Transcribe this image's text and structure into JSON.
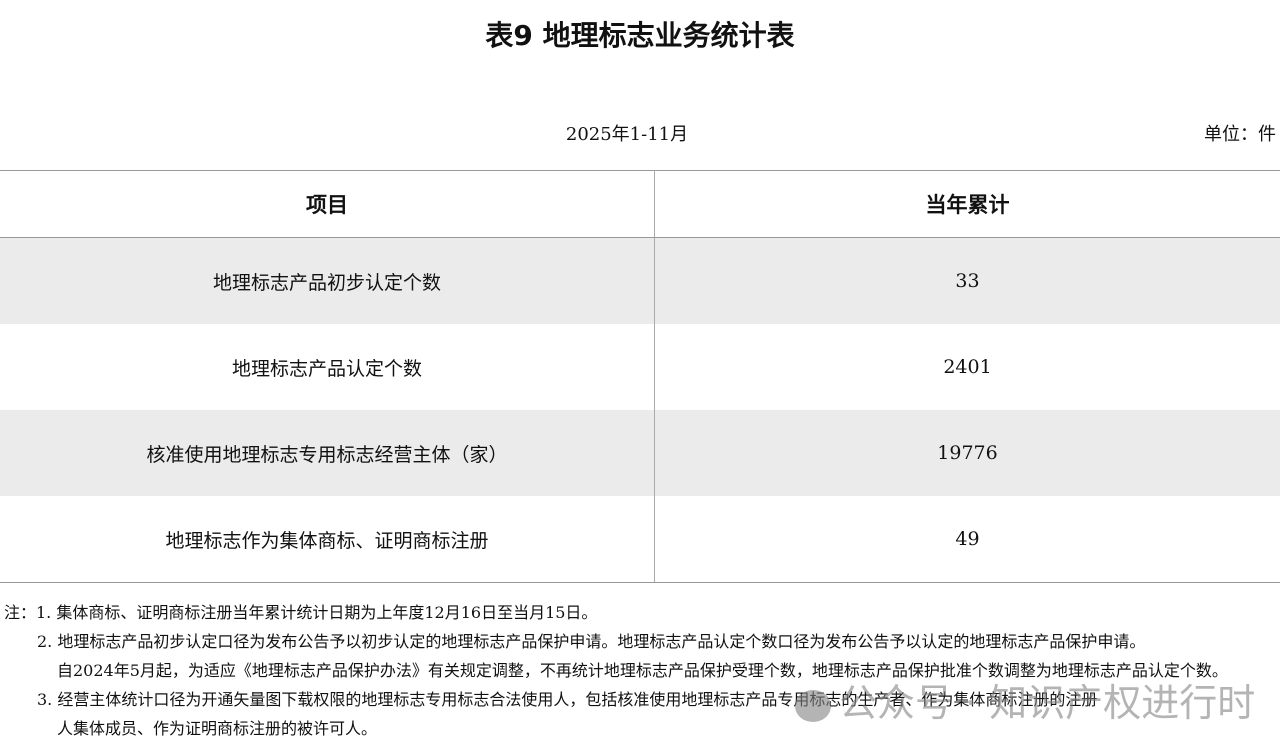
{
  "title": "表9  地理标志业务统计表",
  "period": "2025年1-11月",
  "unit": "单位：件",
  "table": {
    "headers": [
      "项目",
      "当年累计"
    ],
    "rows": [
      {
        "item": "地理标志产品初步认定个数",
        "value": "33"
      },
      {
        "item": "地理标志产品认定个数",
        "value": "2401"
      },
      {
        "item": "核准使用地理标志专用标志经营主体（家）",
        "value": "19776"
      },
      {
        "item": "地理标志作为集体商标、证明商标注册",
        "value": "49"
      }
    ]
  },
  "notes": [
    "注：1. 集体商标、证明商标注册当年累计统计日期为上年度12月16日至当月15日。",
    "2. 地理标志产品初步认定口径为发布公告予以初步认定的地理标志产品保护申请。地理标志产品认定个数口径为发布公告予以认定的地理标志产品保护申请。",
    "自2024年5月起，为适应《地理标志产品保护办法》有关规定调整，不再统计地理标志产品保护受理个数，地理标志产品保护批准个数调整为地理标志产品认定个数。",
    "3. 经营主体统计口径为开通矢量图下载权限的地理标志专用标志合法使用人，包括核准使用地理标志产品专用标志的生产者、作为集体商标注册的注册",
    "人集体成员、作为证明商标注册的被许可人。"
  ],
  "watermark": "公众号 · 知识产权进行时"
}
